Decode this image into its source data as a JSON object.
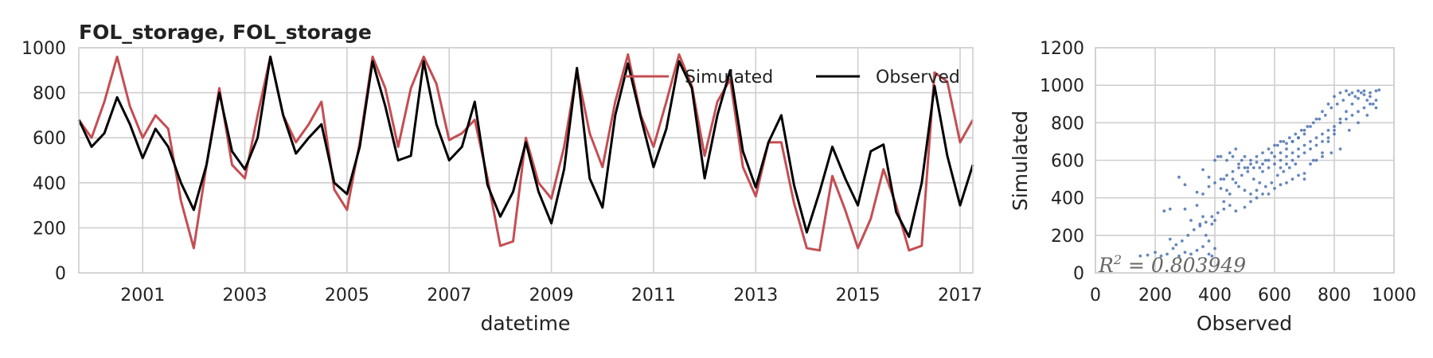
{
  "chart_data": [
    {
      "type": "line",
      "title": "FOL_storage, FOL_storage",
      "xlabel": "datetime",
      "ylabel": "",
      "ylim": [
        0,
        1000
      ],
      "xlim": [
        "1999-10",
        "2017-04"
      ],
      "yticks": [
        "0",
        "200",
        "400",
        "600",
        "800",
        "1000"
      ],
      "xticks": [
        "2001",
        "2003",
        "2005",
        "2007",
        "2009",
        "2011",
        "2013",
        "2015",
        "2017"
      ],
      "grid": true,
      "legend": "top-right",
      "x": [
        "1999-10",
        "2000-01",
        "2000-04",
        "2000-07",
        "2000-10",
        "2001-01",
        "2001-04",
        "2001-07",
        "2001-10",
        "2002-01",
        "2002-04",
        "2002-07",
        "2002-10",
        "2003-01",
        "2003-04",
        "2003-07",
        "2003-10",
        "2004-01",
        "2004-04",
        "2004-07",
        "2004-10",
        "2005-01",
        "2005-04",
        "2005-07",
        "2005-10",
        "2006-01",
        "2006-04",
        "2006-07",
        "2006-10",
        "2007-01",
        "2007-04",
        "2007-07",
        "2007-10",
        "2008-01",
        "2008-04",
        "2008-07",
        "2008-10",
        "2009-01",
        "2009-04",
        "2009-07",
        "2009-10",
        "2010-01",
        "2010-04",
        "2010-07",
        "2010-10",
        "2011-01",
        "2011-04",
        "2011-07",
        "2011-10",
        "2012-01",
        "2012-04",
        "2012-07",
        "2012-10",
        "2013-01",
        "2013-04",
        "2013-07",
        "2013-10",
        "2014-01",
        "2014-04",
        "2014-07",
        "2014-10",
        "2015-01",
        "2015-04",
        "2015-07",
        "2015-10",
        "2016-01",
        "2016-04",
        "2016-07",
        "2016-10",
        "2017-01",
        "2017-04"
      ],
      "series": [
        {
          "name": "Simulated",
          "color": "#c44e52",
          "values": [
            680,
            600,
            760,
            960,
            740,
            600,
            700,
            640,
            320,
            110,
            480,
            820,
            480,
            420,
            700,
            960,
            700,
            580,
            660,
            760,
            370,
            280,
            580,
            960,
            820,
            560,
            820,
            960,
            840,
            590,
            620,
            680,
            420,
            120,
            140,
            600,
            400,
            330,
            560,
            900,
            620,
            470,
            760,
            970,
            700,
            560,
            760,
            970,
            830,
            520,
            760,
            860,
            470,
            340,
            580,
            580,
            310,
            110,
            100,
            430,
            280,
            110,
            240,
            460,
            300,
            100,
            120,
            890,
            850,
            580,
            680
          ]
        },
        {
          "name": "Observed",
          "color": "#000000",
          "values": [
            680,
            560,
            620,
            780,
            660,
            510,
            640,
            560,
            400,
            280,
            480,
            800,
            540,
            460,
            600,
            960,
            700,
            530,
            600,
            660,
            400,
            350,
            560,
            940,
            740,
            500,
            520,
            940,
            660,
            500,
            560,
            760,
            390,
            250,
            360,
            580,
            360,
            220,
            460,
            910,
            420,
            290,
            700,
            930,
            690,
            470,
            640,
            940,
            820,
            420,
            700,
            900,
            540,
            380,
            580,
            700,
            390,
            180,
            360,
            560,
            420,
            300,
            540,
            570,
            270,
            160,
            400,
            830,
            520,
            300,
            480
          ]
        }
      ]
    },
    {
      "type": "scatter",
      "title": "",
      "xlabel": "Observed",
      "ylabel": "Simulated",
      "xlim": [
        0,
        1000
      ],
      "ylim": [
        0,
        1200
      ],
      "xticks": [
        "0",
        "200",
        "400",
        "600",
        "800",
        "1000"
      ],
      "yticks": [
        "0",
        "200",
        "400",
        "600",
        "800",
        "1000",
        "1200"
      ],
      "grid": true,
      "point_color": "#4c72b0",
      "annotation": "R^2 = 0.803949",
      "annotation_prefix": "R",
      "annotation_sup": "2",
      "annotation_rest": " = 0.803949",
      "points": [
        [
          150,
          90
        ],
        [
          175,
          95
        ],
        [
          200,
          110
        ],
        [
          220,
          90
        ],
        [
          240,
          100
        ],
        [
          260,
          130
        ],
        [
          280,
          90
        ],
        [
          300,
          110
        ],
        [
          320,
          100
        ],
        [
          340,
          120
        ],
        [
          360,
          140
        ],
        [
          380,
          100
        ],
        [
          390,
          90
        ],
        [
          400,
          130
        ],
        [
          250,
          180
        ],
        [
          270,
          150
        ],
        [
          290,
          170
        ],
        [
          310,
          200
        ],
        [
          230,
          330
        ],
        [
          250,
          340
        ],
        [
          300,
          340
        ],
        [
          340,
          360
        ],
        [
          360,
          300
        ],
        [
          320,
          280
        ],
        [
          350,
          260
        ],
        [
          390,
          260
        ],
        [
          400,
          280
        ],
        [
          370,
          200
        ],
        [
          380,
          170
        ],
        [
          280,
          510
        ],
        [
          300,
          470
        ],
        [
          340,
          430
        ],
        [
          360,
          550
        ],
        [
          380,
          510
        ],
        [
          400,
          600
        ],
        [
          410,
          620
        ],
        [
          420,
          450
        ],
        [
          430,
          500
        ],
        [
          440,
          440
        ],
        [
          460,
          540
        ],
        [
          480,
          560
        ],
        [
          500,
          560
        ],
        [
          520,
          580
        ],
        [
          540,
          590
        ],
        [
          560,
          580
        ],
        [
          580,
          600
        ],
        [
          600,
          620
        ],
        [
          620,
          640
        ],
        [
          640,
          660
        ],
        [
          660,
          700
        ],
        [
          680,
          720
        ],
        [
          700,
          760
        ],
        [
          720,
          780
        ],
        [
          740,
          820
        ],
        [
          760,
          860
        ],
        [
          780,
          900
        ],
        [
          800,
          940
        ],
        [
          820,
          960
        ],
        [
          840,
          970
        ],
        [
          860,
          960
        ],
        [
          880,
          970
        ],
        [
          900,
          970
        ],
        [
          920,
          960
        ],
        [
          940,
          970
        ],
        [
          950,
          975
        ],
        [
          470,
          330
        ],
        [
          500,
          350
        ],
        [
          520,
          380
        ],
        [
          540,
          400
        ],
        [
          560,
          420
        ],
        [
          580,
          420
        ],
        [
          600,
          450
        ],
        [
          620,
          470
        ],
        [
          640,
          480
        ],
        [
          660,
          500
        ],
        [
          680,
          520
        ],
        [
          700,
          530
        ],
        [
          720,
          580
        ],
        [
          740,
          600
        ],
        [
          760,
          640
        ],
        [
          780,
          700
        ],
        [
          800,
          760
        ],
        [
          820,
          820
        ],
        [
          840,
          860
        ],
        [
          860,
          900
        ],
        [
          880,
          930
        ],
        [
          900,
          950
        ],
        [
          920,
          940
        ],
        [
          430,
          380
        ],
        [
          450,
          420
        ],
        [
          470,
          480
        ],
        [
          490,
          520
        ],
        [
          510,
          540
        ],
        [
          530,
          560
        ],
        [
          550,
          560
        ],
        [
          570,
          600
        ],
        [
          590,
          640
        ],
        [
          610,
          680
        ],
        [
          630,
          700
        ],
        [
          650,
          720
        ],
        [
          670,
          740
        ],
        [
          690,
          760
        ],
        [
          710,
          780
        ],
        [
          730,
          800
        ],
        [
          750,
          820
        ],
        [
          770,
          840
        ],
        [
          790,
          880
        ],
        [
          810,
          900
        ],
        [
          830,
          920
        ],
        [
          850,
          950
        ],
        [
          870,
          940
        ],
        [
          890,
          960
        ],
        [
          910,
          920
        ],
        [
          930,
          900
        ],
        [
          420,
          620
        ],
        [
          440,
          600
        ],
        [
          460,
          620
        ],
        [
          480,
          580
        ],
        [
          500,
          620
        ],
        [
          520,
          600
        ],
        [
          540,
          620
        ],
        [
          560,
          640
        ],
        [
          580,
          660
        ],
        [
          600,
          680
        ],
        [
          620,
          700
        ],
        [
          640,
          690
        ],
        [
          660,
          700
        ],
        [
          680,
          720
        ],
        [
          700,
          740
        ],
        [
          560,
          540
        ],
        [
          580,
          560
        ],
        [
          600,
          580
        ],
        [
          620,
          600
        ],
        [
          640,
          620
        ],
        [
          660,
          640
        ],
        [
          680,
          660
        ],
        [
          700,
          680
        ],
        [
          720,
          700
        ],
        [
          740,
          720
        ],
        [
          760,
          740
        ],
        [
          780,
          760
        ],
        [
          800,
          780
        ],
        [
          820,
          800
        ],
        [
          840,
          820
        ],
        [
          860,
          840
        ],
        [
          880,
          860
        ],
        [
          900,
          880
        ],
        [
          920,
          900
        ],
        [
          940,
          920
        ],
        [
          620,
          560
        ],
        [
          640,
          580
        ],
        [
          660,
          600
        ],
        [
          680,
          620
        ],
        [
          700,
          640
        ],
        [
          720,
          660
        ],
        [
          740,
          680
        ],
        [
          760,
          700
        ],
        [
          780,
          720
        ],
        [
          800,
          740
        ],
        [
          700,
          500
        ],
        [
          730,
          600
        ],
        [
          760,
          620
        ],
        [
          790,
          640
        ],
        [
          820,
          660
        ],
        [
          850,
          760
        ],
        [
          880,
          800
        ],
        [
          910,
          840
        ],
        [
          940,
          880
        ],
        [
          450,
          640
        ],
        [
          470,
          660
        ],
        [
          490,
          600
        ],
        [
          510,
          560
        ],
        [
          530,
          500
        ],
        [
          550,
          480
        ],
        [
          570,
          460
        ],
        [
          590,
          480
        ],
        [
          610,
          520
        ],
        [
          630,
          540
        ],
        [
          650,
          560
        ],
        [
          670,
          580
        ],
        [
          360,
          420
        ],
        [
          380,
          460
        ],
        [
          400,
          480
        ],
        [
          420,
          500
        ],
        [
          440,
          520
        ],
        [
          460,
          500
        ],
        [
          480,
          460
        ],
        [
          500,
          440
        ],
        [
          520,
          420
        ],
        [
          540,
          440
        ],
        [
          330,
          230
        ],
        [
          350,
          250
        ],
        [
          370,
          270
        ],
        [
          390,
          300
        ],
        [
          410,
          320
        ],
        [
          430,
          340
        ],
        [
          450,
          360
        ]
      ]
    }
  ]
}
